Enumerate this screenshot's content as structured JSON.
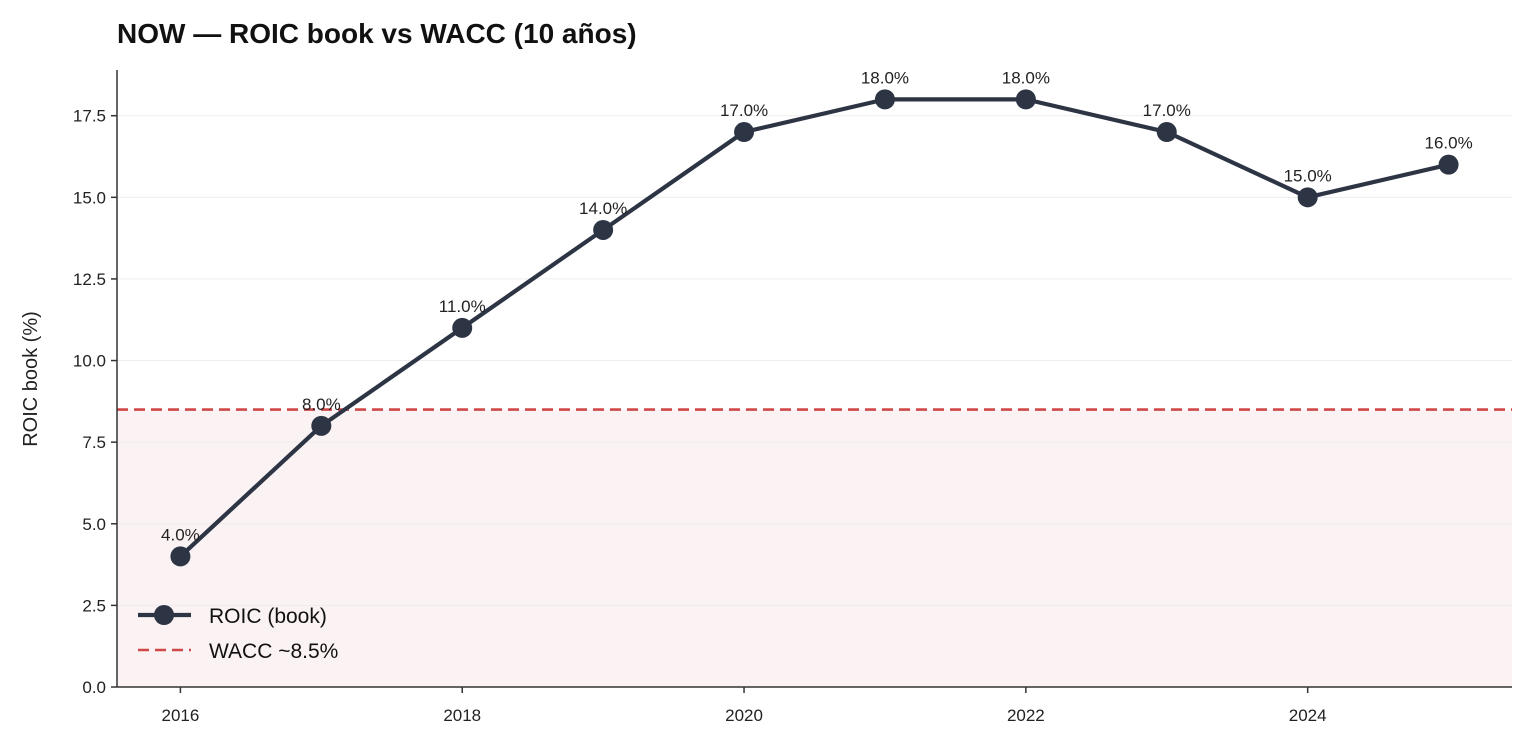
{
  "chart_data": {
    "type": "line",
    "title": "NOW — ROIC book vs WACC (10 años)",
    "xlabel": "",
    "ylabel": "ROIC book (%)",
    "x": [
      2016,
      2017,
      2018,
      2019,
      2020,
      2021,
      2022,
      2023,
      2024,
      2025
    ],
    "xticks": [
      2016,
      2018,
      2020,
      2022,
      2024
    ],
    "xlim": [
      2015.55,
      2025.45
    ],
    "ylim": [
      0,
      18.9
    ],
    "yticks": [
      0.0,
      2.5,
      5.0,
      7.5,
      10.0,
      12.5,
      15.0,
      17.5
    ],
    "ytick_labels": [
      "0.0",
      "2.5",
      "5.0",
      "7.5",
      "10.0",
      "12.5",
      "15.0",
      "17.5"
    ],
    "grid": "horizontal",
    "legend": "lower-left",
    "series": [
      {
        "name": "ROIC (book)",
        "color": "#2d3545",
        "values": [
          4.0,
          8.0,
          11.0,
          14.0,
          17.0,
          18.0,
          18.0,
          17.0,
          15.0,
          16.0
        ],
        "labels": [
          "4.0%",
          "8.0%",
          "11.0%",
          "14.0%",
          "17.0%",
          "18.0%",
          "18.0%",
          "17.0%",
          "15.0%",
          "16.0%"
        ]
      }
    ],
    "reference_line": {
      "name": "WACC ~8.5%",
      "value": 8.5,
      "color": "#d04848",
      "shade_color": "#fbf2f3"
    }
  }
}
